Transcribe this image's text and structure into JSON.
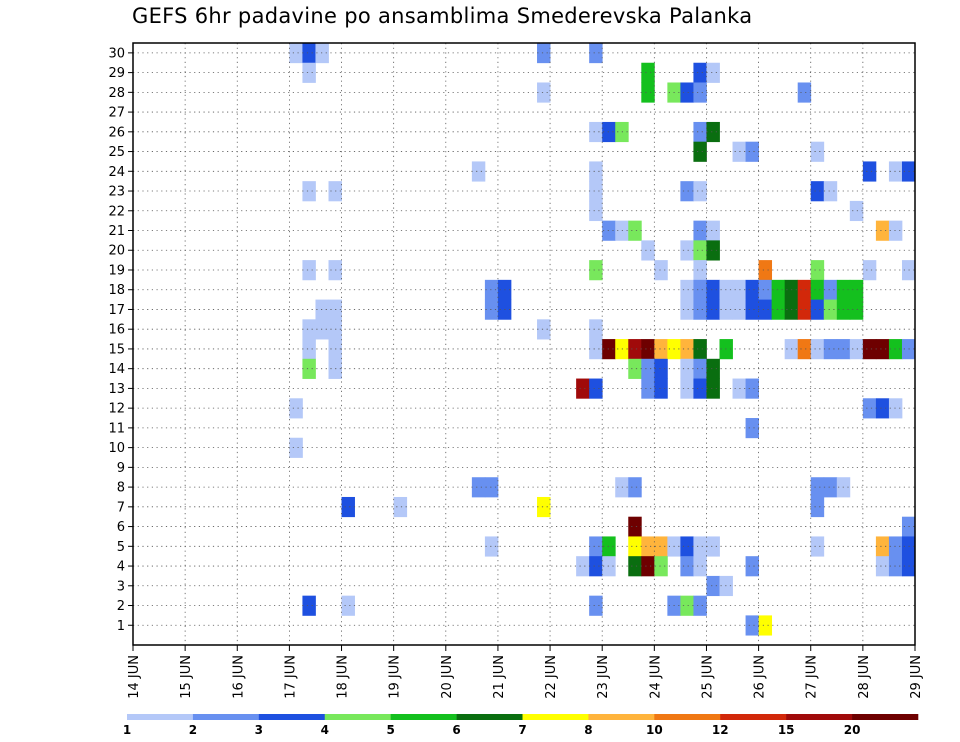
{
  "chart_data": {
    "type": "heatmap",
    "title": "GEFS 6hr padavine po ansamblima Smederevska Palanka",
    "xlabel": "",
    "ylabel": "",
    "x_ticks": [
      "14 JUN",
      "15 JUN",
      "16 JUN",
      "17 JUN",
      "18 JUN",
      "19 JUN",
      "20 JUN",
      "21 JUN",
      "22 JUN",
      "23 JUN",
      "24 JUN",
      "25 JUN",
      "26 JUN",
      "27 JUN",
      "28 JUN",
      "29 JUN"
    ],
    "y_ticks": [
      "1",
      "2",
      "3",
      "4",
      "5",
      "6",
      "7",
      "8",
      "9",
      "10",
      "11",
      "12",
      "13",
      "14",
      "15",
      "16",
      "17",
      "18",
      "19",
      "20",
      "21",
      "22",
      "23",
      "24",
      "25",
      "26",
      "27",
      "28",
      "29",
      "30"
    ],
    "x_range_days": [
      0,
      15
    ],
    "y_range_members": [
      0,
      30
    ],
    "grid": true,
    "legend_placement": "bottom",
    "legend_labels": [
      "1",
      "2",
      "3",
      "4",
      "5",
      "6",
      "7",
      "8",
      "10",
      "12",
      "15",
      "20"
    ],
    "legend_colors": [
      "#b4c8f8",
      "#6890f0",
      "#1e50e0",
      "#78e85c",
      "#14c01e",
      "#0a6e10",
      "#ffff00",
      "#ffb43c",
      "#f07814",
      "#d2280a",
      "#a00a0a",
      "#6e0000"
    ],
    "cells": [
      {
        "d": 3.0,
        "m": 30,
        "c": 0
      },
      {
        "d": 3.25,
        "m": 30,
        "c": 2
      },
      {
        "d": 3.5,
        "m": 30,
        "c": 0
      },
      {
        "d": 3.25,
        "m": 29,
        "c": 0
      },
      {
        "d": 7.75,
        "m": 30,
        "c": 1
      },
      {
        "d": 8.75,
        "m": 30,
        "c": 1
      },
      {
        "d": 9.75,
        "m": 29,
        "c": 4
      },
      {
        "d": 9.75,
        "m": 28,
        "c": 4
      },
      {
        "d": 10.75,
        "m": 29,
        "c": 2
      },
      {
        "d": 11.0,
        "m": 29,
        "c": 0
      },
      {
        "d": 7.75,
        "m": 28,
        "c": 0
      },
      {
        "d": 10.25,
        "m": 28,
        "c": 3
      },
      {
        "d": 10.5,
        "m": 28,
        "c": 2
      },
      {
        "d": 10.75,
        "m": 28,
        "c": 1
      },
      {
        "d": 12.75,
        "m": 28,
        "c": 1
      },
      {
        "d": 8.75,
        "m": 26,
        "c": 0
      },
      {
        "d": 9.0,
        "m": 26,
        "c": 2
      },
      {
        "d": 9.25,
        "m": 26,
        "c": 3
      },
      {
        "d": 10.75,
        "m": 26,
        "c": 1
      },
      {
        "d": 11.0,
        "m": 26,
        "c": 5
      },
      {
        "d": 10.75,
        "m": 25,
        "c": 5
      },
      {
        "d": 11.5,
        "m": 25,
        "c": 0
      },
      {
        "d": 11.75,
        "m": 25,
        "c": 1
      },
      {
        "d": 13.0,
        "m": 25,
        "c": 0
      },
      {
        "d": 6.5,
        "m": 24,
        "c": 0
      },
      {
        "d": 8.75,
        "m": 24,
        "c": 0
      },
      {
        "d": 14.0,
        "m": 24,
        "c": 2
      },
      {
        "d": 14.5,
        "m": 24,
        "c": 0
      },
      {
        "d": 14.75,
        "m": 24,
        "c": 2
      },
      {
        "d": 3.25,
        "m": 23,
        "c": 0
      },
      {
        "d": 3.75,
        "m": 23,
        "c": 0
      },
      {
        "d": 8.75,
        "m": 23,
        "c": 0
      },
      {
        "d": 10.5,
        "m": 23,
        "c": 1
      },
      {
        "d": 10.75,
        "m": 23,
        "c": 0
      },
      {
        "d": 13.0,
        "m": 23,
        "c": 2
      },
      {
        "d": 13.25,
        "m": 23,
        "c": 0
      },
      {
        "d": 8.75,
        "m": 22,
        "c": 0
      },
      {
        "d": 13.75,
        "m": 22,
        "c": 0
      },
      {
        "d": 9.0,
        "m": 21,
        "c": 1
      },
      {
        "d": 9.25,
        "m": 21,
        "c": 0
      },
      {
        "d": 9.5,
        "m": 21,
        "c": 3
      },
      {
        "d": 10.75,
        "m": 21,
        "c": 1
      },
      {
        "d": 11.0,
        "m": 21,
        "c": 0
      },
      {
        "d": 14.25,
        "m": 21,
        "c": 7
      },
      {
        "d": 14.5,
        "m": 21,
        "c": 0
      },
      {
        "d": 9.75,
        "m": 20,
        "c": 0
      },
      {
        "d": 10.5,
        "m": 20,
        "c": 0
      },
      {
        "d": 10.75,
        "m": 20,
        "c": 3
      },
      {
        "d": 11.0,
        "m": 20,
        "c": 5
      },
      {
        "d": 8.75,
        "m": 19,
        "c": 3
      },
      {
        "d": 3.25,
        "m": 19,
        "c": 0
      },
      {
        "d": 3.75,
        "m": 19,
        "c": 0
      },
      {
        "d": 10.0,
        "m": 19,
        "c": 0
      },
      {
        "d": 10.75,
        "m": 19,
        "c": 0
      },
      {
        "d": 12.0,
        "m": 19,
        "c": 8
      },
      {
        "d": 13.0,
        "m": 19,
        "c": 3
      },
      {
        "d": 14.0,
        "m": 19,
        "c": 0
      },
      {
        "d": 14.75,
        "m": 19,
        "c": 0
      },
      {
        "d": 6.75,
        "m": 18,
        "c": 1
      },
      {
        "d": 7.0,
        "m": 18,
        "c": 2
      },
      {
        "d": 6.75,
        "m": 17,
        "c": 1
      },
      {
        "d": 7.0,
        "m": 17,
        "c": 2
      },
      {
        "d": 10.5,
        "m": 18,
        "c": 0
      },
      {
        "d": 10.75,
        "m": 18,
        "c": 1
      },
      {
        "d": 11.0,
        "m": 18,
        "c": 2
      },
      {
        "d": 11.25,
        "m": 18,
        "c": 0
      },
      {
        "d": 11.5,
        "m": 18,
        "c": 0
      },
      {
        "d": 11.75,
        "m": 18,
        "c": 2
      },
      {
        "d": 12.0,
        "m": 18,
        "c": 1
      },
      {
        "d": 12.25,
        "m": 18,
        "c": 4
      },
      {
        "d": 12.5,
        "m": 18,
        "c": 5
      },
      {
        "d": 12.75,
        "m": 18,
        "c": 9
      },
      {
        "d": 13.0,
        "m": 18,
        "c": 4
      },
      {
        "d": 13.25,
        "m": 18,
        "c": 1
      },
      {
        "d": 13.5,
        "m": 18,
        "c": 4
      },
      {
        "d": 13.75,
        "m": 18,
        "c": 4
      },
      {
        "d": 10.5,
        "m": 17,
        "c": 0
      },
      {
        "d": 10.75,
        "m": 17,
        "c": 1
      },
      {
        "d": 11.0,
        "m": 17,
        "c": 2
      },
      {
        "d": 11.25,
        "m": 17,
        "c": 0
      },
      {
        "d": 11.5,
        "m": 17,
        "c": 0
      },
      {
        "d": 11.75,
        "m": 17,
        "c": 2
      },
      {
        "d": 12.0,
        "m": 17,
        "c": 2
      },
      {
        "d": 12.25,
        "m": 17,
        "c": 4
      },
      {
        "d": 12.5,
        "m": 17,
        "c": 5
      },
      {
        "d": 12.75,
        "m": 17,
        "c": 9
      },
      {
        "d": 13.0,
        "m": 17,
        "c": 2
      },
      {
        "d": 13.25,
        "m": 17,
        "c": 3
      },
      {
        "d": 13.5,
        "m": 17,
        "c": 4
      },
      {
        "d": 13.75,
        "m": 17,
        "c": 4
      },
      {
        "d": 3.5,
        "m": 17,
        "c": 0
      },
      {
        "d": 3.75,
        "m": 17,
        "c": 0
      },
      {
        "d": 3.5,
        "m": 16,
        "c": 0
      },
      {
        "d": 3.75,
        "m": 16,
        "c": 0
      },
      {
        "d": 7.75,
        "m": 16,
        "c": 0
      },
      {
        "d": 3.25,
        "m": 16,
        "c": 0
      },
      {
        "d": 8.75,
        "m": 16,
        "c": 0
      },
      {
        "d": 3.25,
        "m": 15,
        "c": 0
      },
      {
        "d": 3.75,
        "m": 15,
        "c": 0
      },
      {
        "d": 3.25,
        "m": 14,
        "c": 3
      },
      {
        "d": 3.75,
        "m": 14,
        "c": 0
      },
      {
        "d": 8.75,
        "m": 15,
        "c": 0
      },
      {
        "d": 9.0,
        "m": 15,
        "c": 11
      },
      {
        "d": 9.25,
        "m": 15,
        "c": 6
      },
      {
        "d": 9.5,
        "m": 15,
        "c": 10
      },
      {
        "d": 9.75,
        "m": 15,
        "c": 11
      },
      {
        "d": 10.0,
        "m": 15,
        "c": 7
      },
      {
        "d": 10.25,
        "m": 15,
        "c": 6
      },
      {
        "d": 10.5,
        "m": 15,
        "c": 7
      },
      {
        "d": 10.75,
        "m": 15,
        "c": 5
      },
      {
        "d": 11.25,
        "m": 15,
        "c": 4
      },
      {
        "d": 12.5,
        "m": 15,
        "c": 0
      },
      {
        "d": 12.75,
        "m": 15,
        "c": 8
      },
      {
        "d": 13.0,
        "m": 15,
        "c": 0
      },
      {
        "d": 13.25,
        "m": 15,
        "c": 1
      },
      {
        "d": 13.5,
        "m": 15,
        "c": 1
      },
      {
        "d": 13.75,
        "m": 15,
        "c": 0
      },
      {
        "d": 14.0,
        "m": 15,
        "c": 11
      },
      {
        "d": 14.25,
        "m": 15,
        "c": 11
      },
      {
        "d": 14.5,
        "m": 15,
        "c": 4
      },
      {
        "d": 14.75,
        "m": 15,
        "c": 1
      },
      {
        "d": 8.5,
        "m": 13,
        "c": 10
      },
      {
        "d": 8.75,
        "m": 13,
        "c": 2
      },
      {
        "d": 9.5,
        "m": 14,
        "c": 3
      },
      {
        "d": 9.75,
        "m": 14,
        "c": 1
      },
      {
        "d": 10.0,
        "m": 14,
        "c": 2
      },
      {
        "d": 9.75,
        "m": 13,
        "c": 1
      },
      {
        "d": 10.0,
        "m": 13,
        "c": 2
      },
      {
        "d": 10.5,
        "m": 14,
        "c": 0
      },
      {
        "d": 10.75,
        "m": 14,
        "c": 1
      },
      {
        "d": 11.0,
        "m": 14,
        "c": 5
      },
      {
        "d": 10.5,
        "m": 13,
        "c": 0
      },
      {
        "d": 10.75,
        "m": 13,
        "c": 2
      },
      {
        "d": 11.0,
        "m": 13,
        "c": 5
      },
      {
        "d": 11.5,
        "m": 13,
        "c": 0
      },
      {
        "d": 11.75,
        "m": 13,
        "c": 1
      },
      {
        "d": 14.0,
        "m": 12,
        "c": 1
      },
      {
        "d": 14.25,
        "m": 12,
        "c": 2
      },
      {
        "d": 14.5,
        "m": 12,
        "c": 0
      },
      {
        "d": 3.0,
        "m": 12,
        "c": 0
      },
      {
        "d": 11.75,
        "m": 11,
        "c": 1
      },
      {
        "d": 3.0,
        "m": 10,
        "c": 0
      },
      {
        "d": 6.5,
        "m": 8,
        "c": 1
      },
      {
        "d": 6.75,
        "m": 8,
        "c": 1
      },
      {
        "d": 9.25,
        "m": 8,
        "c": 0
      },
      {
        "d": 9.5,
        "m": 8,
        "c": 1
      },
      {
        "d": 13.0,
        "m": 8,
        "c": 1
      },
      {
        "d": 13.25,
        "m": 8,
        "c": 1
      },
      {
        "d": 13.5,
        "m": 8,
        "c": 0
      },
      {
        "d": 4.0,
        "m": 7,
        "c": 2
      },
      {
        "d": 5.0,
        "m": 7,
        "c": 0
      },
      {
        "d": 7.75,
        "m": 7,
        "c": 6
      },
      {
        "d": 13.0,
        "m": 7,
        "c": 1
      },
      {
        "d": 9.5,
        "m": 6,
        "c": 11
      },
      {
        "d": 14.75,
        "m": 6,
        "c": 1
      },
      {
        "d": 6.75,
        "m": 5,
        "c": 0
      },
      {
        "d": 8.75,
        "m": 5,
        "c": 1
      },
      {
        "d": 9.0,
        "m": 5,
        "c": 4
      },
      {
        "d": 9.5,
        "m": 5,
        "c": 6
      },
      {
        "d": 9.75,
        "m": 5,
        "c": 7
      },
      {
        "d": 10.0,
        "m": 5,
        "c": 7
      },
      {
        "d": 10.25,
        "m": 5,
        "c": 0
      },
      {
        "d": 10.5,
        "m": 5,
        "c": 2
      },
      {
        "d": 10.75,
        "m": 5,
        "c": 0
      },
      {
        "d": 11.0,
        "m": 5,
        "c": 0
      },
      {
        "d": 13.0,
        "m": 5,
        "c": 0
      },
      {
        "d": 14.25,
        "m": 5,
        "c": 7
      },
      {
        "d": 14.5,
        "m": 5,
        "c": 1
      },
      {
        "d": 14.75,
        "m": 5,
        "c": 2
      },
      {
        "d": 8.5,
        "m": 4,
        "c": 0
      },
      {
        "d": 8.75,
        "m": 4,
        "c": 2
      },
      {
        "d": 9.0,
        "m": 4,
        "c": 0
      },
      {
        "d": 9.5,
        "m": 4,
        "c": 5
      },
      {
        "d": 9.75,
        "m": 4,
        "c": 11
      },
      {
        "d": 10.0,
        "m": 4,
        "c": 3
      },
      {
        "d": 10.5,
        "m": 4,
        "c": 1
      },
      {
        "d": 10.75,
        "m": 4,
        "c": 0
      },
      {
        "d": 11.75,
        "m": 4,
        "c": 1
      },
      {
        "d": 14.25,
        "m": 4,
        "c": 0
      },
      {
        "d": 14.5,
        "m": 4,
        "c": 1
      },
      {
        "d": 14.75,
        "m": 4,
        "c": 2
      },
      {
        "d": 11.0,
        "m": 3,
        "c": 1
      },
      {
        "d": 11.25,
        "m": 3,
        "c": 0
      },
      {
        "d": 3.25,
        "m": 2,
        "c": 2
      },
      {
        "d": 4.0,
        "m": 2,
        "c": 0
      },
      {
        "d": 8.75,
        "m": 2,
        "c": 1
      },
      {
        "d": 10.25,
        "m": 2,
        "c": 1
      },
      {
        "d": 10.5,
        "m": 2,
        "c": 3
      },
      {
        "d": 10.75,
        "m": 2,
        "c": 1
      },
      {
        "d": 11.75,
        "m": 1,
        "c": 1
      },
      {
        "d": 12.0,
        "m": 1,
        "c": 6
      }
    ]
  }
}
